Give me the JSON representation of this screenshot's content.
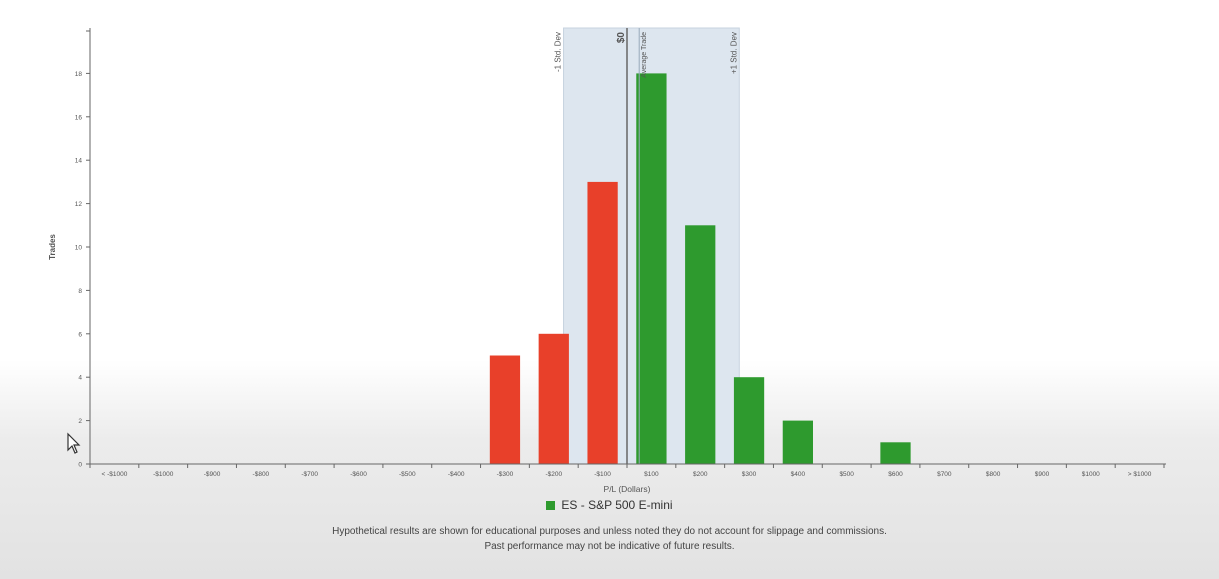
{
  "chart_data": {
    "type": "bar",
    "xlabel": "P/L (Dollars)",
    "ylabel": "Trades",
    "ylim": [
      0,
      20
    ],
    "yticks": [
      0,
      2,
      4,
      6,
      8,
      10,
      12,
      14,
      16,
      18
    ],
    "categories": [
      "< -$1000",
      "-$1000",
      "-$900",
      "-$800",
      "-$700",
      "-$600",
      "-$500",
      "-$400",
      "-$300",
      "-$200",
      "-$100",
      "$100",
      "$200",
      "$300",
      "$400",
      "$500",
      "$600",
      "$700",
      "$800",
      "$900",
      "$1000",
      "> $1000"
    ],
    "values": [
      0,
      0,
      0,
      0,
      0,
      0,
      0,
      0,
      5,
      6,
      13,
      18,
      11,
      4,
      2,
      0,
      1,
      0,
      0,
      0,
      0,
      0
    ],
    "colors": {
      "loss": "#e8402a",
      "gain": "#2e9a2e",
      "std_band": "#dde6ef",
      "zero_line": "#666666"
    },
    "annotations": {
      "zero_label": "$0",
      "minus_std_label": "-1 Std. Dev",
      "plus_std_label": "+1 Std. Dev",
      "avg_label": "Average Trade"
    },
    "std_band_range": [
      -130,
      230
    ],
    "avg_trade": 25,
    "legend": {
      "label": "ES - S&P 500 E-mini",
      "color": "#2e9a2e",
      "position": "bottom-center"
    },
    "grid": false
  },
  "disclaimer": {
    "line1": "Hypothetical results are shown for educational purposes and unless noted they do not account for slippage and commissions.",
    "line2": "Past performance may not be indicative of future results."
  }
}
